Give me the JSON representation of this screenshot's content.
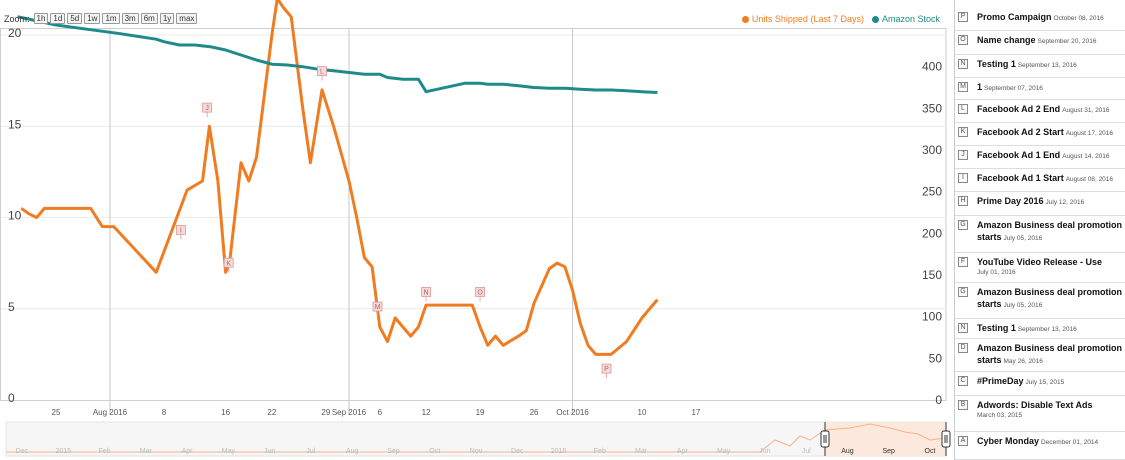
{
  "toolbar": {
    "zoom_label": "Zoom:",
    "zoom_buttons": [
      "1h",
      "1d",
      "5d",
      "1w",
      "1m",
      "3m",
      "6m",
      "1y",
      "max"
    ]
  },
  "legend": [
    {
      "label": "Units Shipped (Last 7 Days)",
      "color": "#f07c22"
    },
    {
      "label": "Amazon Stock",
      "color": "#1f8a8a"
    }
  ],
  "chart_data": {
    "type": "line",
    "x_tick_labels": [
      {
        "day": 0,
        "label": "25"
      },
      {
        "day": 7,
        "label": "Aug 2016"
      },
      {
        "day": 14,
        "label": "8"
      },
      {
        "day": 22,
        "label": "16"
      },
      {
        "day": 28,
        "label": "22"
      },
      {
        "day": 35,
        "label": "29"
      },
      {
        "day": 38,
        "label": "Sep 2016"
      },
      {
        "day": 42,
        "label": "6"
      },
      {
        "day": 48,
        "label": "12"
      },
      {
        "day": 55,
        "label": "19"
      },
      {
        "day": 62,
        "label": "26"
      },
      {
        "day": 67,
        "label": "Oct 2016"
      },
      {
        "day": 76,
        "label": "10"
      },
      {
        "day": 83,
        "label": "17"
      }
    ],
    "month_gridlines": [
      7,
      38,
      67
    ],
    "y_left": {
      "min": 0,
      "max": 20,
      "ticks": [
        0,
        5,
        10,
        15,
        20
      ]
    },
    "y_right": {
      "min": 0,
      "max": 450,
      "ticks": [
        0,
        50,
        100,
        150,
        200,
        250,
        300,
        350,
        400
      ]
    },
    "x_range": [
      -4,
      83
    ],
    "series": [
      {
        "name": "Units Shipped (Last 7 Days)",
        "axis": "left",
        "color": "#f07c22",
        "points": [
          [
            -4.5,
            10.5
          ],
          [
            -3.5,
            10.2
          ],
          [
            -2.5,
            10
          ],
          [
            -1.5,
            10.5
          ],
          [
            -0.5,
            10.5
          ],
          [
            4.5,
            10.5
          ],
          [
            6,
            9.5
          ],
          [
            7.5,
            9.5
          ],
          [
            13,
            7
          ],
          [
            17,
            11.5
          ],
          [
            19,
            12
          ],
          [
            19.9,
            15
          ],
          [
            21,
            12
          ],
          [
            22,
            7
          ],
          [
            22.5,
            7.5
          ],
          [
            24,
            13
          ],
          [
            25,
            12
          ],
          [
            26,
            13.3
          ],
          [
            28,
            20
          ],
          [
            28.7,
            22
          ],
          [
            29.5,
            21.5
          ],
          [
            30.5,
            21
          ],
          [
            32,
            16
          ],
          [
            33,
            13
          ],
          [
            34.5,
            17
          ],
          [
            36,
            15
          ],
          [
            38,
            12
          ],
          [
            39,
            10
          ],
          [
            40,
            7.8
          ],
          [
            41,
            7.3
          ],
          [
            42,
            4
          ],
          [
            43,
            3.2
          ],
          [
            44,
            4.5
          ],
          [
            45,
            4
          ],
          [
            46,
            3.5
          ],
          [
            47,
            4
          ],
          [
            48,
            5.2
          ],
          [
            54,
            5.2
          ],
          [
            55,
            4
          ],
          [
            56,
            3
          ],
          [
            57,
            3.5
          ],
          [
            58,
            3
          ],
          [
            60,
            3.5
          ],
          [
            61,
            3.8
          ],
          [
            62,
            5.3
          ],
          [
            64,
            7.2
          ],
          [
            65,
            7.5
          ],
          [
            66,
            7.3
          ],
          [
            67,
            6
          ],
          [
            68,
            4.2
          ],
          [
            69,
            3
          ],
          [
            70,
            2.5
          ],
          [
            72,
            2.5
          ],
          [
            74,
            3.2
          ],
          [
            76,
            4.5
          ],
          [
            78,
            5.5
          ]
        ]
      },
      {
        "name": "Amazon Stock",
        "axis": "right",
        "color": "#1f8a8a",
        "points": [
          [
            -5,
            460
          ],
          [
            0,
            450
          ],
          [
            4,
            445
          ],
          [
            8,
            440
          ],
          [
            13,
            433
          ],
          [
            14,
            430
          ],
          [
            16,
            426
          ],
          [
            18,
            426
          ],
          [
            20,
            424
          ],
          [
            22,
            420
          ],
          [
            24,
            414
          ],
          [
            26,
            408
          ],
          [
            28,
            403
          ],
          [
            30,
            402
          ],
          [
            32,
            400
          ],
          [
            34,
            397
          ],
          [
            36,
            395
          ],
          [
            38,
            393
          ],
          [
            40,
            391
          ],
          [
            42,
            391
          ],
          [
            43,
            387
          ],
          [
            45,
            385
          ],
          [
            47,
            385
          ],
          [
            48,
            370
          ],
          [
            53,
            380
          ],
          [
            55,
            380
          ],
          [
            56,
            379
          ],
          [
            58,
            379
          ],
          [
            60,
            377
          ],
          [
            62,
            375
          ],
          [
            64,
            374
          ],
          [
            66,
            374
          ],
          [
            68,
            373
          ],
          [
            70,
            372
          ],
          [
            72,
            372
          ],
          [
            74,
            371
          ],
          [
            76,
            370
          ],
          [
            78,
            369
          ]
        ]
      }
    ],
    "annotations": [
      {
        "letter": "J",
        "day": 19.6,
        "value": 15.5
      },
      {
        "letter": "I",
        "day": 16.2,
        "value": 8.8
      },
      {
        "letter": "K",
        "day": 22.4,
        "value": 7.0
      },
      {
        "letter": "L",
        "day": 34.5,
        "value": 17.5
      },
      {
        "letter": "M",
        "day": 41.7,
        "value": 4.6
      },
      {
        "letter": "N",
        "day": 48.0,
        "value": 5.4
      },
      {
        "letter": "O",
        "day": 55.0,
        "value": 5.4
      },
      {
        "letter": "P",
        "day": 71.4,
        "value": 1.2
      }
    ]
  },
  "navigator": {
    "labels": [
      "Dec",
      "2015",
      "Feb",
      "Mar",
      "Apr",
      "May",
      "Jun",
      "Jul",
      "Aug",
      "Sep",
      "Oct",
      "Nov",
      "Dec",
      "2016",
      "Feb",
      "Mar",
      "Apr",
      "May",
      "Jun",
      "Jul",
      "Aug",
      "Sep",
      "Oct"
    ],
    "active_labels": [
      "Aug",
      "Sep",
      "Oct"
    ]
  },
  "events": [
    {
      "letter": "P",
      "title": "Promo Campaign",
      "date": "October 08, 2016"
    },
    {
      "letter": "O",
      "title": "Name change",
      "date": "September 20, 2016"
    },
    {
      "letter": "N",
      "title": "Testing 1",
      "date": "September 13, 2016"
    },
    {
      "letter": "M",
      "title": "1",
      "date": "September 07, 2016"
    },
    {
      "letter": "L",
      "title": "Facebook Ad 2 End",
      "date": "August 31, 2016"
    },
    {
      "letter": "K",
      "title": "Facebook Ad 2 Start",
      "date": "August 17, 2016"
    },
    {
      "letter": "J",
      "title": "Facebook Ad 1 End",
      "date": "August 14, 2016"
    },
    {
      "letter": "I",
      "title": "Facebook Ad 1 Start",
      "date": "August 08, 2016"
    },
    {
      "letter": "H",
      "title": "Prime Day 2016",
      "date": "July 12, 2016"
    },
    {
      "letter": "G",
      "title": "Amazon Business deal promotion starts",
      "date": "July 05, 2016"
    },
    {
      "letter": "F",
      "title": "YouTube Video Release - Use",
      "date": "July 01, 2016"
    },
    {
      "letter": "G",
      "title": "Amazon Business deal promotion starts",
      "date": "July 05, 2016"
    },
    {
      "letter": "N",
      "title": "Testing 1",
      "date": "September 13, 2016"
    },
    {
      "letter": "D",
      "title": "Amazon Business deal promotion starts",
      "date": "May 26, 2016"
    },
    {
      "letter": "C",
      "title": "#PrimeDay",
      "date": "July 15, 2015"
    },
    {
      "letter": "B",
      "title": "Adwords: Disable Text Ads",
      "date": "March 03, 2015"
    },
    {
      "letter": "A",
      "title": "Cyber Monday",
      "date": "December 01, 2014"
    }
  ]
}
